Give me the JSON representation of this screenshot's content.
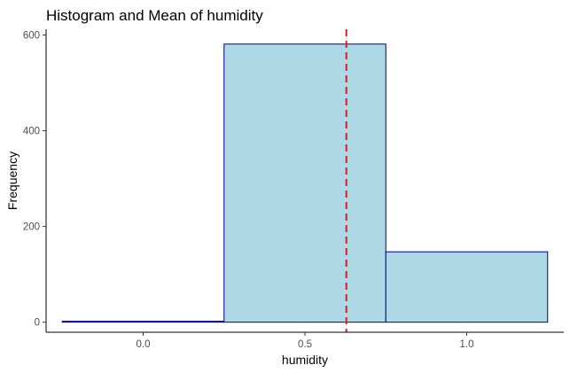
{
  "chart_data": {
    "type": "bar",
    "title": "Histogram and Mean of  humidity",
    "xlabel": "humidity",
    "ylabel": "Frequency",
    "bins": [
      {
        "x_start": -0.25,
        "x_end": 0.25,
        "count": 2
      },
      {
        "x_start": 0.25,
        "x_end": 0.75,
        "count": 581
      },
      {
        "x_start": 0.75,
        "x_end": 1.25,
        "count": 147
      }
    ],
    "mean": 0.628,
    "xlim": [
      -0.3,
      1.3
    ],
    "ylim": [
      -21,
      612
    ],
    "x_ticks": [
      0.0,
      0.5,
      1.0
    ],
    "x_tick_labels": [
      "0.0",
      "0.5",
      "1.0"
    ],
    "y_ticks": [
      0,
      200,
      400,
      600
    ],
    "y_tick_labels": [
      "0",
      "200",
      "400",
      "600"
    ],
    "grid": false,
    "colors": {
      "bar_fill": "#add8e6",
      "bar_outline": "#00008b",
      "mean_line": "#e31a1c",
      "axis": "#000000",
      "tick_text": "#4d4d4d"
    }
  }
}
